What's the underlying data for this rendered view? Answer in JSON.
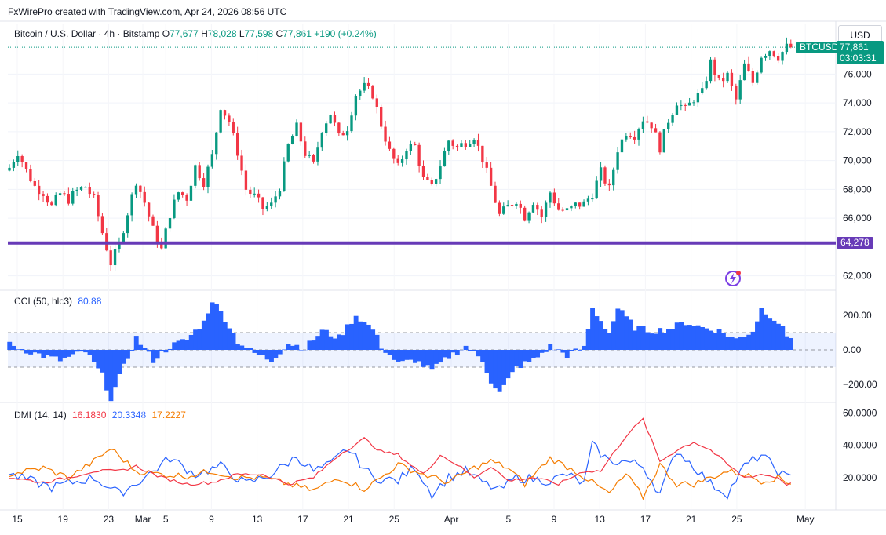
{
  "header": {
    "credit": "FxWirePro created with TradingView.com, Apr 24, 2026 08:56 UTC"
  },
  "symbol": {
    "title": "Bitcoin / U.S. Dollar · 4h · Bitstamp",
    "o_label": "O",
    "o_value": "77,677",
    "h_label": "H",
    "h_value": "78,028",
    "l_label": "L",
    "l_value": "77,598",
    "c_label": "C",
    "c_value": "77,861",
    "change": "+190 (+0.24%)"
  },
  "currency_button": "USD",
  "price_tag": {
    "ticker": "BTCUSD",
    "price": "77,861",
    "countdown": "03:03:31"
  },
  "support_level": {
    "label": "64,278",
    "value": 64278,
    "color": "#673ab7"
  },
  "colors": {
    "up": "#089981",
    "down": "#f23645",
    "cci": "#2962ff",
    "plus_di": "#2962ff",
    "minus_di": "#f23645",
    "adx": "#f57c00"
  },
  "cci": {
    "title": "CCI (50, hlc3)",
    "value": "80.88"
  },
  "dmi": {
    "title": "DMI (14, 14)",
    "v1": "16.1830",
    "v2": "20.3348",
    "v3": "17.2227"
  },
  "chart_data": {
    "type": "candlestick",
    "title": "Bitcoin / U.S. Dollar · 4h · Bitstamp",
    "ylim": [
      61000,
      79500
    ],
    "y_ticks": [
      "62,000",
      "66,000",
      "68,000",
      "70,000",
      "72,000",
      "74,000",
      "76,000"
    ],
    "x_ticks": [
      "15",
      "19",
      "23",
      "Mar",
      "5",
      "9",
      "13",
      "17",
      "21",
      "25",
      "Apr",
      "5",
      "9",
      "13",
      "17",
      "21",
      "25",
      "May"
    ],
    "close_path": [
      [
        0,
        69500
      ],
      [
        2,
        70600
      ],
      [
        4,
        69300
      ],
      [
        6,
        68200
      ],
      [
        8,
        67800
      ],
      [
        10,
        66800
      ],
      [
        12,
        67700
      ],
      [
        14,
        67300
      ],
      [
        16,
        67900
      ],
      [
        18,
        68200
      ],
      [
        20,
        67300
      ],
      [
        22,
        65000
      ],
      [
        24,
        62900
      ],
      [
        26,
        64200
      ],
      [
        28,
        66400
      ],
      [
        30,
        68600
      ],
      [
        32,
        67100
      ],
      [
        34,
        65200
      ],
      [
        36,
        63800
      ],
      [
        38,
        66300
      ],
      [
        40,
        67800
      ],
      [
        42,
        67400
      ],
      [
        44,
        69600
      ],
      [
        46,
        68500
      ],
      [
        48,
        70300
      ],
      [
        50,
        73800
      ],
      [
        52,
        72700
      ],
      [
        54,
        70600
      ],
      [
        56,
        68000
      ],
      [
        58,
        67500
      ],
      [
        60,
        66700
      ],
      [
        62,
        66900
      ],
      [
        64,
        68200
      ],
      [
        66,
        71000
      ],
      [
        68,
        72300
      ],
      [
        70,
        70500
      ],
      [
        72,
        69700
      ],
      [
        74,
        72200
      ],
      [
        76,
        73300
      ],
      [
        78,
        71600
      ],
      [
        80,
        72300
      ],
      [
        82,
        74600
      ],
      [
        84,
        75100
      ],
      [
        86,
        74600
      ],
      [
        88,
        72500
      ],
      [
        90,
        70600
      ],
      [
        92,
        69500
      ],
      [
        94,
        70900
      ],
      [
        96,
        71000
      ],
      [
        98,
        68700
      ],
      [
        100,
        68100
      ],
      [
        102,
        69700
      ],
      [
        104,
        71400
      ],
      [
        106,
        70900
      ],
      [
        108,
        71300
      ],
      [
        110,
        71700
      ],
      [
        112,
        70100
      ],
      [
        114,
        68200
      ],
      [
        116,
        66200
      ],
      [
        118,
        66800
      ],
      [
        120,
        67300
      ],
      [
        122,
        66100
      ],
      [
        124,
        67200
      ],
      [
        126,
        66100
      ],
      [
        128,
        67800
      ],
      [
        130,
        66600
      ],
      [
        132,
        66500
      ],
      [
        134,
        66900
      ],
      [
        136,
        67000
      ],
      [
        138,
        67700
      ],
      [
        140,
        69200
      ],
      [
        142,
        68000
      ],
      [
        144,
        70800
      ],
      [
        146,
        72000
      ],
      [
        148,
        71800
      ],
      [
        150,
        72900
      ],
      [
        152,
        72500
      ],
      [
        154,
        70900
      ],
      [
        156,
        72800
      ],
      [
        158,
        74100
      ],
      [
        160,
        73500
      ],
      [
        162,
        74300
      ],
      [
        164,
        74700
      ],
      [
        166,
        76800
      ],
      [
        168,
        75400
      ],
      [
        170,
        75900
      ],
      [
        172,
        74200
      ],
      [
        174,
        76600
      ],
      [
        176,
        75400
      ],
      [
        178,
        77300
      ],
      [
        180,
        77700
      ],
      [
        182,
        77200
      ],
      [
        184,
        77861
      ]
    ],
    "cci_range": [
      -300,
      300
    ],
    "cci_bands": [
      100,
      0,
      -100
    ],
    "cci_ticks": [
      "200.00",
      "0.00",
      "−200.00"
    ],
    "cci_path": [
      [
        0,
        30
      ],
      [
        6,
        -20
      ],
      [
        12,
        -60
      ],
      [
        18,
        -10
      ],
      [
        22,
        -150
      ],
      [
        24,
        -280
      ],
      [
        27,
        -100
      ],
      [
        30,
        70
      ],
      [
        34,
        -60
      ],
      [
        38,
        20
      ],
      [
        42,
        60
      ],
      [
        46,
        160
      ],
      [
        48,
        290
      ],
      [
        51,
        180
      ],
      [
        54,
        50
      ],
      [
        58,
        -20
      ],
      [
        62,
        -60
      ],
      [
        66,
        40
      ],
      [
        70,
        10
      ],
      [
        74,
        110
      ],
      [
        78,
        70
      ],
      [
        82,
        200
      ],
      [
        86,
        120
      ],
      [
        88,
        20
      ],
      [
        92,
        -80
      ],
      [
        96,
        -60
      ],
      [
        100,
        -120
      ],
      [
        104,
        -40
      ],
      [
        108,
        20
      ],
      [
        112,
        -60
      ],
      [
        114,
        -180
      ],
      [
        116,
        -250
      ],
      [
        120,
        -100
      ],
      [
        124,
        -60
      ],
      [
        128,
        20
      ],
      [
        132,
        -30
      ],
      [
        136,
        10
      ],
      [
        138,
        240
      ],
      [
        142,
        100
      ],
      [
        144,
        240
      ],
      [
        148,
        130
      ],
      [
        152,
        110
      ],
      [
        156,
        120
      ],
      [
        160,
        160
      ],
      [
        164,
        130
      ],
      [
        168,
        110
      ],
      [
        172,
        60
      ],
      [
        176,
        110
      ],
      [
        178,
        240
      ],
      [
        182,
        160
      ],
      [
        184,
        81
      ]
    ],
    "dmi_range": [
      0,
      60
    ],
    "dmi_ticks": [
      "60.0000",
      "40.0000",
      "20.0000"
    ],
    "dmi_plus": [
      [
        0,
        22
      ],
      [
        10,
        14
      ],
      [
        20,
        20
      ],
      [
        26,
        10
      ],
      [
        32,
        20
      ],
      [
        38,
        32
      ],
      [
        44,
        22
      ],
      [
        50,
        27
      ],
      [
        56,
        16
      ],
      [
        62,
        22
      ],
      [
        68,
        33
      ],
      [
        72,
        24
      ],
      [
        76,
        28
      ],
      [
        80,
        38
      ],
      [
        86,
        20
      ],
      [
        92,
        18
      ],
      [
        96,
        27
      ],
      [
        100,
        10
      ],
      [
        104,
        20
      ],
      [
        108,
        24
      ],
      [
        112,
        17
      ],
      [
        116,
        12
      ],
      [
        120,
        20
      ],
      [
        124,
        19
      ],
      [
        128,
        18
      ],
      [
        132,
        22
      ],
      [
        136,
        16
      ],
      [
        138,
        40
      ],
      [
        142,
        30
      ],
      [
        146,
        30
      ],
      [
        150,
        27
      ],
      [
        154,
        10
      ],
      [
        158,
        37
      ],
      [
        162,
        27
      ],
      [
        166,
        16
      ],
      [
        170,
        10
      ],
      [
        174,
        27
      ],
      [
        178,
        34
      ],
      [
        182,
        24
      ],
      [
        184,
        20
      ]
    ],
    "dmi_minus": [
      [
        0,
        20
      ],
      [
        8,
        17
      ],
      [
        14,
        20
      ],
      [
        20,
        24
      ],
      [
        26,
        24
      ],
      [
        30,
        27
      ],
      [
        36,
        20
      ],
      [
        42,
        16
      ],
      [
        48,
        17
      ],
      [
        54,
        22
      ],
      [
        60,
        22
      ],
      [
        66,
        16
      ],
      [
        72,
        20
      ],
      [
        78,
        34
      ],
      [
        84,
        44
      ],
      [
        88,
        36
      ],
      [
        92,
        34
      ],
      [
        98,
        22
      ],
      [
        102,
        34
      ],
      [
        106,
        28
      ],
      [
        110,
        20
      ],
      [
        114,
        27
      ],
      [
        118,
        18
      ],
      [
        124,
        20
      ],
      [
        130,
        16
      ],
      [
        136,
        24
      ],
      [
        140,
        24
      ],
      [
        146,
        46
      ],
      [
        150,
        56
      ],
      [
        154,
        30
      ],
      [
        158,
        37
      ],
      [
        162,
        42
      ],
      [
        166,
        37
      ],
      [
        170,
        28
      ],
      [
        174,
        20
      ],
      [
        178,
        22
      ],
      [
        182,
        20
      ],
      [
        184,
        16
      ]
    ],
    "adx": [
      [
        0,
        22
      ],
      [
        8,
        26
      ],
      [
        14,
        20
      ],
      [
        20,
        30
      ],
      [
        24,
        38
      ],
      [
        30,
        24
      ],
      [
        36,
        22
      ],
      [
        42,
        21
      ],
      [
        48,
        24
      ],
      [
        54,
        20
      ],
      [
        60,
        20
      ],
      [
        66,
        16
      ],
      [
        72,
        12
      ],
      [
        78,
        20
      ],
      [
        84,
        13
      ],
      [
        88,
        20
      ],
      [
        92,
        28
      ],
      [
        98,
        22
      ],
      [
        104,
        17
      ],
      [
        110,
        26
      ],
      [
        114,
        30
      ],
      [
        118,
        26
      ],
      [
        122,
        16
      ],
      [
        128,
        32
      ],
      [
        134,
        24
      ],
      [
        138,
        17
      ],
      [
        142,
        10
      ],
      [
        146,
        22
      ],
      [
        150,
        8
      ],
      [
        154,
        28
      ],
      [
        158,
        16
      ],
      [
        162,
        16
      ],
      [
        166,
        20
      ],
      [
        170,
        24
      ],
      [
        174,
        22
      ],
      [
        178,
        18
      ],
      [
        182,
        20
      ],
      [
        184,
        17
      ]
    ]
  }
}
